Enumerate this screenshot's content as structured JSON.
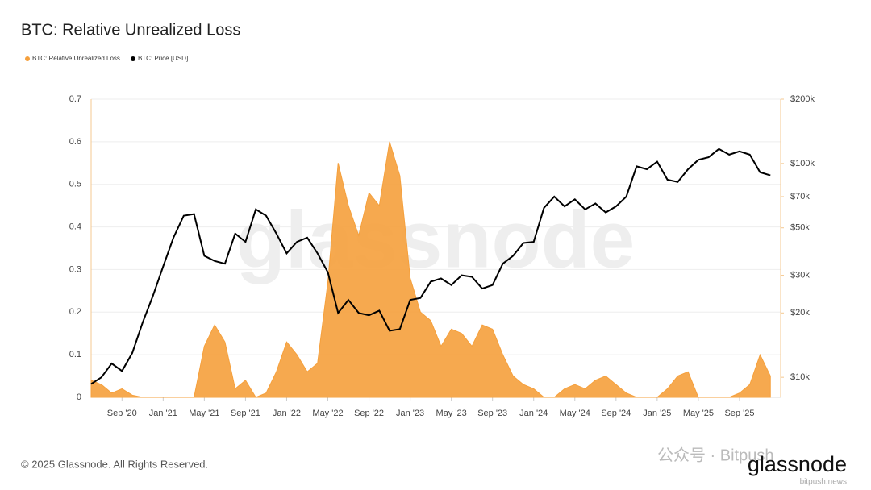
{
  "chart_data": {
    "type": "line",
    "title": "BTC: Relative Unrealized Loss",
    "x": [
      "2020-06",
      "2020-07",
      "2020-08",
      "2020-09",
      "2020-10",
      "2020-11",
      "2020-12",
      "2021-01",
      "2021-02",
      "2021-03",
      "2021-04",
      "2021-05",
      "2021-06",
      "2021-07",
      "2021-08",
      "2021-09",
      "2021-10",
      "2021-11",
      "2021-12",
      "2022-01",
      "2022-02",
      "2022-03",
      "2022-04",
      "2022-05",
      "2022-06",
      "2022-07",
      "2022-08",
      "2022-09",
      "2022-10",
      "2022-11",
      "2022-12",
      "2023-01",
      "2023-02",
      "2023-03",
      "2023-04",
      "2023-05",
      "2023-06",
      "2023-07",
      "2023-08",
      "2023-09",
      "2023-10",
      "2023-11",
      "2023-12",
      "2024-01",
      "2024-02",
      "2024-03",
      "2024-04",
      "2024-05",
      "2024-06",
      "2024-07",
      "2024-08",
      "2024-09",
      "2024-10",
      "2024-11",
      "2024-12",
      "2025-01",
      "2025-02",
      "2025-03",
      "2025-04",
      "2025-05",
      "2025-06",
      "2025-07",
      "2025-08",
      "2025-09",
      "2025-10",
      "2025-11",
      "2025-12"
    ],
    "series": [
      {
        "name": "BTC: Relative Unrealized Loss",
        "color": "#f5a03c",
        "style": "area",
        "values": [
          0.04,
          0.03,
          0.01,
          0.02,
          0.005,
          0,
          0,
          0,
          0,
          0,
          0,
          0.12,
          0.17,
          0.13,
          0.02,
          0.04,
          0,
          0.01,
          0.06,
          0.13,
          0.1,
          0.06,
          0.08,
          0.27,
          0.55,
          0.45,
          0.38,
          0.48,
          0.45,
          0.6,
          0.52,
          0.28,
          0.2,
          0.18,
          0.12,
          0.16,
          0.15,
          0.12,
          0.17,
          0.16,
          0.1,
          0.05,
          0.03,
          0.02,
          0,
          0,
          0.02,
          0.03,
          0.02,
          0.04,
          0.05,
          0.03,
          0.01,
          0,
          0,
          0,
          0.02,
          0.05,
          0.06,
          0,
          0,
          0,
          0,
          0.01,
          0.03,
          0.1,
          0.05
        ]
      },
      {
        "name": "BTC: Price [USD]",
        "color": "#000000",
        "style": "line",
        "axis": "y2",
        "values": [
          9300,
          10000,
          11600,
          10700,
          13000,
          18000,
          24000,
          33000,
          45000,
          57000,
          58000,
          37000,
          35000,
          34000,
          47000,
          43000,
          61000,
          57000,
          47000,
          38000,
          43000,
          45000,
          38000,
          31000,
          20000,
          23000,
          20000,
          19500,
          20500,
          16500,
          16800,
          23000,
          23500,
          28000,
          29000,
          27000,
          30000,
          29500,
          26000,
          27000,
          34000,
          37000,
          42500,
          43000,
          62000,
          70000,
          63000,
          68000,
          61000,
          65000,
          59000,
          63000,
          70000,
          97000,
          94000,
          102000,
          84000,
          82000,
          94000,
          104000,
          107000,
          117000,
          110000,
          114000,
          110000,
          91000,
          88000
        ]
      }
    ],
    "xlim": [
      "2020-06",
      "2026-01"
    ],
    "xticks": [
      {
        "value": "2020-09",
        "label": "Sep '20"
      },
      {
        "value": "2021-01",
        "label": "Jan '21"
      },
      {
        "value": "2021-05",
        "label": "May '21"
      },
      {
        "value": "2021-09",
        "label": "Sep '21"
      },
      {
        "value": "2022-01",
        "label": "Jan '22"
      },
      {
        "value": "2022-05",
        "label": "May '22"
      },
      {
        "value": "2022-09",
        "label": "Sep '22"
      },
      {
        "value": "2023-01",
        "label": "Jan '23"
      },
      {
        "value": "2023-05",
        "label": "May '23"
      },
      {
        "value": "2023-09",
        "label": "Sep '23"
      },
      {
        "value": "2024-01",
        "label": "Jan '24"
      },
      {
        "value": "2024-05",
        "label": "May '24"
      },
      {
        "value": "2024-09",
        "label": "Sep '24"
      },
      {
        "value": "2025-01",
        "label": "Jan '25"
      },
      {
        "value": "2025-05",
        "label": "May '25"
      },
      {
        "value": "2025-09",
        "label": "Sep '25"
      }
    ],
    "ylim": [
      0,
      0.7
    ],
    "yticks": [
      0,
      0.1,
      0.2,
      0.3,
      0.4,
      0.5,
      0.6,
      0.7
    ],
    "y2lim": [
      8060,
      200000
    ],
    "y2log": true,
    "y2ticks": [
      {
        "value": 10000,
        "label": "$10k"
      },
      {
        "value": 20000,
        "label": "$20k"
      },
      {
        "value": 30000,
        "label": "$30k"
      },
      {
        "value": 50000,
        "label": "$50k"
      },
      {
        "value": 70000,
        "label": "$70k"
      },
      {
        "value": 100000,
        "label": "$100k"
      },
      {
        "value": 200000,
        "label": "$200k"
      }
    ],
    "grid": true,
    "legend": "top-left",
    "watermark": "glassnode"
  },
  "footer": {
    "copyright": "© 2025 Glassnode. All Rights Reserved.",
    "logo": "glassnode",
    "wechat": "公众号 · Bitpush",
    "site": "bitpush.news"
  }
}
